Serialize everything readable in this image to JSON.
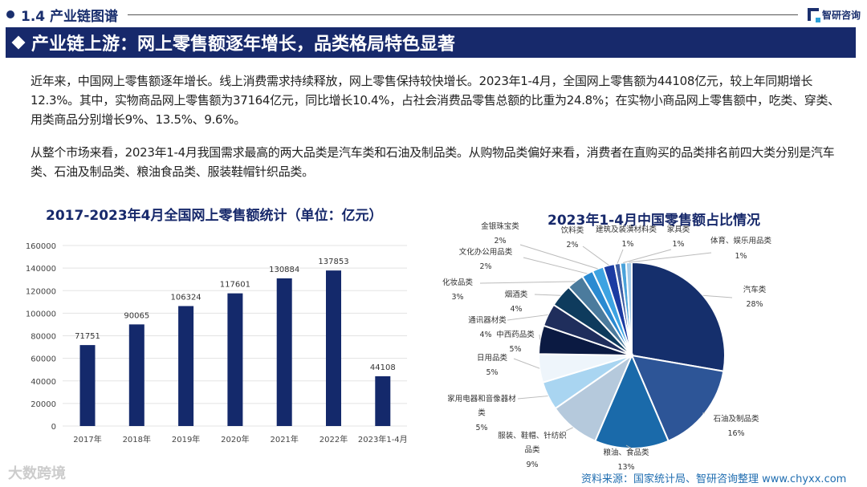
{
  "header": {
    "section": "1.4 产业链图谱",
    "brand": "智研咨询"
  },
  "banner": {
    "title": "产业链上游：网上零售额逐年增长，品类格局特色显著"
  },
  "paragraphs": [
    "近年来，中国网上零售额逐年增长。线上消费需求持续释放，网上零售保持较快增长。2023年1-4月，全国网上零售额为44108亿元，较上年同期增长12.3%。其中，实物商品网上零售额为37164亿元，同比增长10.4%，占社会消费品零售总额的比重为24.8%；在实物小商品网上零售额中，吃类、穿类、用类商品分别增长9%、13.5%、9.6%。",
    "从整个市场来看，2023年1-4月我国需求最高的两大品类是汽车类和石油及制品类。从购物品类偏好来看，消费者在直购买的品类排名前四大类分别是汽车类、石油及制品类、粮油食品类、服装鞋帽针织品类。"
  ],
  "chart_data": [
    {
      "type": "bar",
      "title": "2017-2023年4月全国网上零售额统计（单位：亿元）",
      "categories": [
        "2017年",
        "2018年",
        "2019年",
        "2020年",
        "2021年",
        "2022年",
        "2023年1-4月"
      ],
      "values": [
        71751,
        90065,
        106324,
        117601,
        130884,
        137853,
        44108
      ],
      "yticks": [
        "0",
        "20000",
        "40000",
        "60000",
        "80000",
        "100000",
        "120000",
        "140000",
        "160000"
      ],
      "ylim": [
        0,
        160000
      ],
      "grid": true,
      "color": "#14296b"
    },
    {
      "type": "pie",
      "title": "2023年1-4月中国零售额占比情况",
      "slices": [
        {
          "label": "汽车类",
          "value": 28,
          "text": "28%",
          "color": "#152f6c"
        },
        {
          "label": "石油及制品类",
          "value": 16,
          "text": "16%",
          "color": "#2d5597"
        },
        {
          "label": "粮油、食品类",
          "value": 13,
          "text": "13%",
          "color": "#1a6aaa"
        },
        {
          "label": "服装、鞋帽、针纺织品类",
          "value": 9,
          "text": "9%",
          "color": "#b5c9dc"
        },
        {
          "label": "家用电器和音像器材类",
          "value": 5,
          "text": "5%",
          "color": "#a9d5f1"
        },
        {
          "label": "日用品类",
          "value": 5,
          "text": "5%",
          "color": "#eef5fb"
        },
        {
          "label": "中西药品类",
          "value": 5,
          "text": "5%",
          "color": "#0b1a42"
        },
        {
          "label": "通讯器材类",
          "value": 4,
          "text": "4%",
          "color": "#1f2e5c"
        },
        {
          "label": "烟酒类",
          "value": 4,
          "text": "4%",
          "color": "#0e3b5d"
        },
        {
          "label": "化妆品类",
          "value": 3,
          "text": "3%",
          "color": "#4b7b9d"
        },
        {
          "label": "文化办公用品类",
          "value": 2,
          "text": "2%",
          "color": "#2a8ad1"
        },
        {
          "label": "金银珠宝类",
          "value": 2,
          "text": "2%",
          "color": "#3da3e2"
        },
        {
          "label": "饮料类",
          "value": 2,
          "text": "2%",
          "color": "#1b3ba2"
        },
        {
          "label": "建筑及装潢材料类",
          "value": 1,
          "text": "1%",
          "color": "#3c5ca3"
        },
        {
          "label": "家具类",
          "value": 1,
          "text": "1%",
          "color": "#4aa2da"
        },
        {
          "label": "体育、娱乐用品类",
          "value": 1,
          "text": "1%",
          "color": "#a3cbe9"
        }
      ]
    }
  ],
  "footer": {
    "source": "资料来源：国家统计局、智研咨询整理   www.chyxx.com",
    "watermark": "大数跨境"
  }
}
